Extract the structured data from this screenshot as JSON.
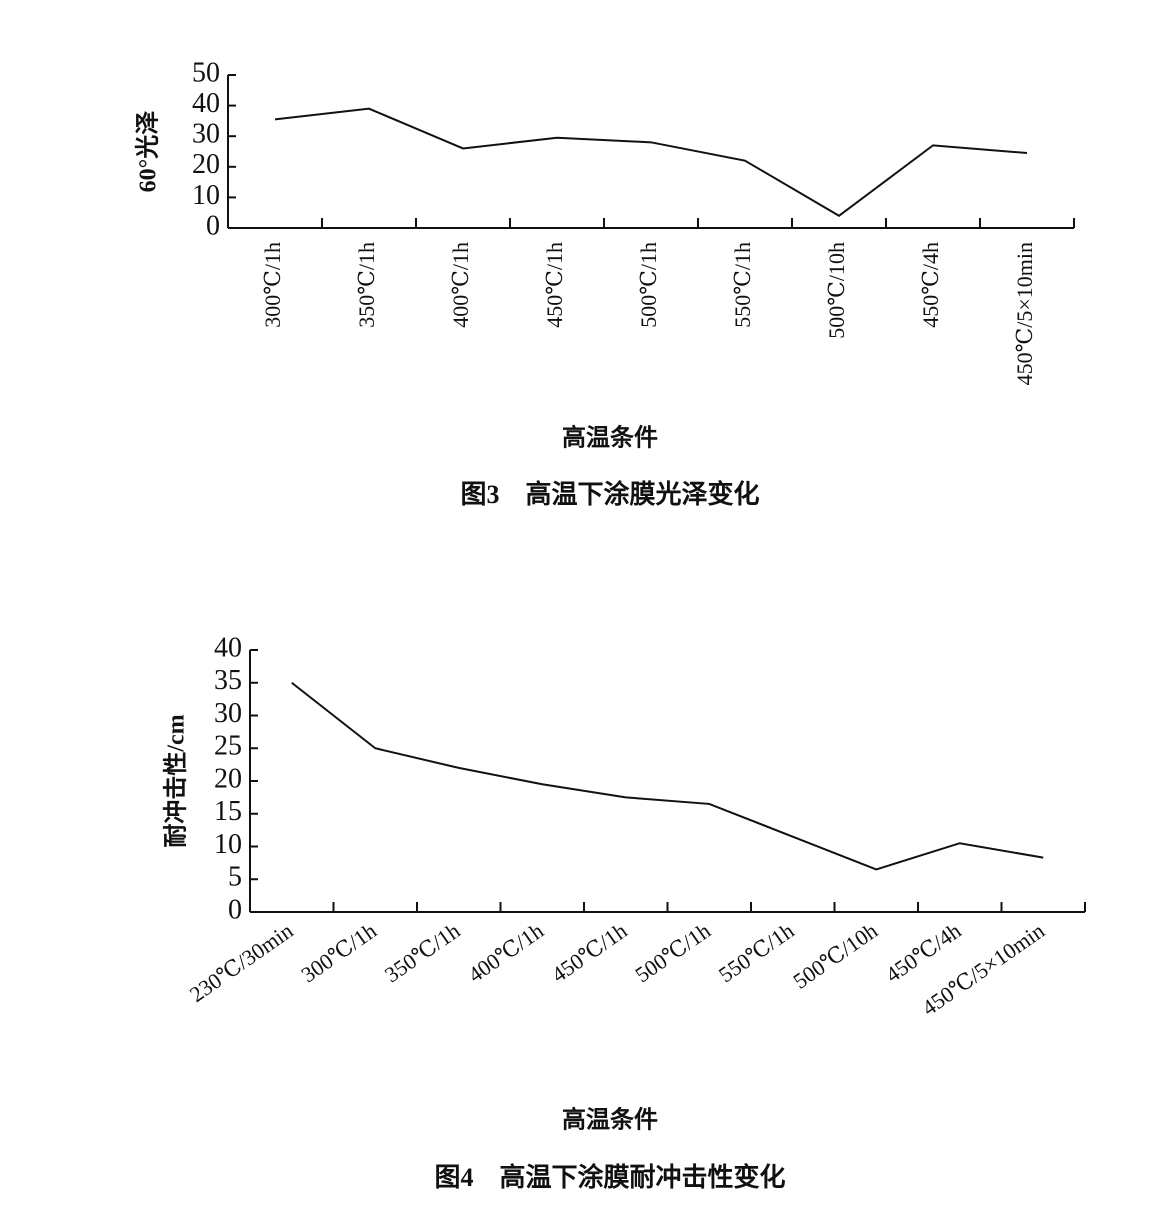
{
  "chart_data": [
    {
      "type": "line",
      "title": "图3　高温下涂膜光泽变化",
      "x_label": "高温条件",
      "y_label": "60°光泽",
      "categories": [
        "300℃/1h",
        "350℃/1h",
        "400℃/1h",
        "450℃/1h",
        "500℃/1h",
        "550℃/1h",
        "500℃/10h",
        "450℃/4h",
        "450℃/5×10min"
      ],
      "values": [
        35.5,
        39,
        26,
        29.5,
        28,
        22,
        4,
        27,
        24.5
      ],
      "color": "#111111",
      "ylim": [
        0,
        50
      ],
      "yticks": [
        0,
        10,
        20,
        30,
        40,
        50
      ]
    },
    {
      "type": "line",
      "title": "图4　高温下涂膜耐冲击性变化",
      "x_label": "高温条件",
      "y_label": "耐冲击性/cm",
      "categories": [
        "230℃/30min",
        "300℃/1h",
        "350℃/1h",
        "400℃/1h",
        "450℃/1h",
        "500℃/1h",
        "550℃/1h",
        "500℃/10h",
        "450℃/4h",
        "450℃/5×10min"
      ],
      "values": [
        35,
        25,
        22,
        19.5,
        17.5,
        16.5,
        11.5,
        6.5,
        10.5,
        8.3
      ],
      "color": "#111111",
      "ylim": [
        0,
        40
      ],
      "yticks": [
        0,
        5,
        10,
        15,
        20,
        25,
        30,
        35,
        40
      ]
    }
  ]
}
